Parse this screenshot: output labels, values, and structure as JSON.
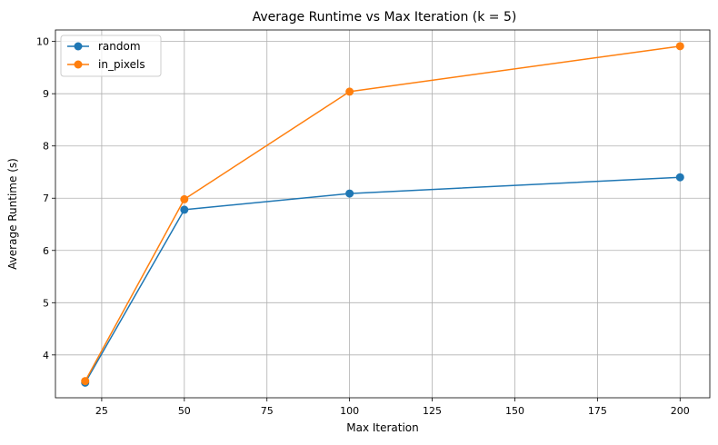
{
  "chart_data": {
    "type": "line",
    "title": "Average Runtime vs Max Iteration (k = 5)",
    "xlabel": "Max Iteration",
    "ylabel": "Average Runtime (s)",
    "x": [
      20,
      50,
      100,
      200
    ],
    "xlim": [
      11,
      209
    ],
    "ylim": [
      3.18,
      10.22
    ],
    "xticks": [
      25,
      50,
      75,
      100,
      125,
      150,
      175,
      200
    ],
    "yticks": [
      4,
      5,
      6,
      7,
      8,
      9,
      10
    ],
    "grid": true,
    "legend_position": "top-left",
    "series": [
      {
        "name": "random",
        "color": "#1f77b4",
        "values": [
          3.47,
          6.78,
          7.09,
          7.4
        ]
      },
      {
        "name": "in_pixels",
        "color": "#ff7f0e",
        "values": [
          3.5,
          6.98,
          9.04,
          9.91
        ]
      }
    ]
  }
}
